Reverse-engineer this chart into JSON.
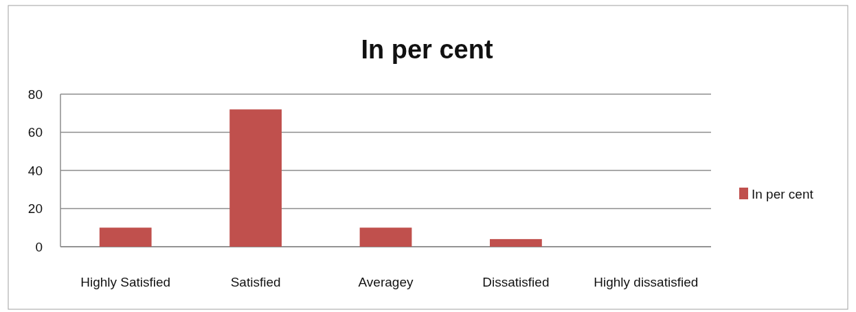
{
  "chart_data": {
    "type": "bar",
    "title": "In per cent",
    "categories": [
      "Highly Satisfied",
      "Satisfied",
      "Averagey",
      "Dissatisfied",
      "Highly dissatisfied"
    ],
    "series": [
      {
        "name": "In per cent",
        "color": "#c0504d",
        "values": [
          10,
          72,
          10,
          4,
          0
        ]
      }
    ],
    "ylim": [
      0,
      80
    ],
    "yticks": [
      0,
      20,
      40,
      60,
      80
    ],
    "grid": "y",
    "legend": "right"
  }
}
